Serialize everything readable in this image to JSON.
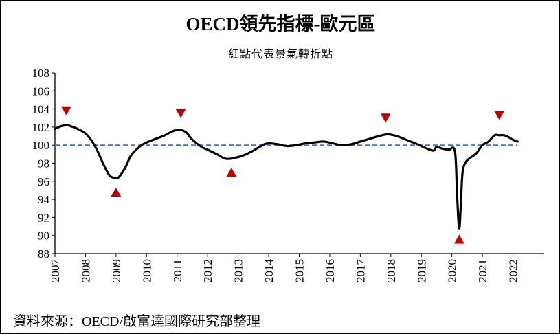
{
  "chart_data": {
    "type": "line",
    "title": "OECD領先指標-歐元區",
    "subtitle": "紅點代表景氣轉折點",
    "source": "資料來源：OECD/啟富達國際研究部整理",
    "xlabel": "",
    "ylabel": "",
    "xlim": [
      2007.0,
      2023.0
    ],
    "ylim": [
      88,
      108
    ],
    "y_ticks": [
      88,
      90,
      92,
      94,
      96,
      98,
      100,
      102,
      104,
      106,
      108
    ],
    "x_ticks": [
      "2007",
      "2008",
      "2009",
      "2010",
      "2011",
      "2012",
      "2013",
      "2014",
      "2015",
      "2016",
      "2017",
      "2018",
      "2019",
      "2020",
      "2021",
      "2022"
    ],
    "x_tick_values": [
      2007,
      2008,
      2009,
      2010,
      2011,
      2012,
      2013,
      2014,
      2015,
      2016,
      2017,
      2018,
      2019,
      2020,
      2021,
      2022
    ],
    "grid": false,
    "reference_line": {
      "y": 100,
      "style": "dashed",
      "color": "#4472C4"
    },
    "series": [
      {
        "color": "#000000",
        "x": [
          2007.0,
          2007.2,
          2007.4,
          2007.6,
          2007.8,
          2008.0,
          2008.2,
          2008.4,
          2008.6,
          2008.8,
          2009.0,
          2009.1,
          2009.3,
          2009.5,
          2009.8,
          2010.0,
          2010.3,
          2010.6,
          2010.9,
          2011.1,
          2011.3,
          2011.5,
          2011.8,
          2012.0,
          2012.3,
          2012.6,
          2012.9,
          2013.2,
          2013.5,
          2013.8,
          2014.0,
          2014.3,
          2014.6,
          2014.9,
          2015.2,
          2015.5,
          2015.8,
          2016.1,
          2016.4,
          2016.7,
          2017.0,
          2017.3,
          2017.6,
          2017.9,
          2018.2,
          2018.5,
          2018.8,
          2019.0,
          2019.2,
          2019.4,
          2019.5,
          2019.7,
          2019.9,
          2020.1,
          2020.17,
          2020.24,
          2020.3,
          2020.35,
          2020.45,
          2020.6,
          2020.8,
          2021.0,
          2021.2,
          2021.4,
          2021.55,
          2021.7,
          2021.85,
          2022.0,
          2022.15
        ],
        "y": [
          101.8,
          102.1,
          102.2,
          102.0,
          101.7,
          101.3,
          100.5,
          99.3,
          97.8,
          96.6,
          96.4,
          96.5,
          97.5,
          98.9,
          99.9,
          100.3,
          100.7,
          101.1,
          101.6,
          101.7,
          101.4,
          100.6,
          99.8,
          99.5,
          99.0,
          98.5,
          98.6,
          98.9,
          99.4,
          100.0,
          100.2,
          100.1,
          99.9,
          100.0,
          100.2,
          100.3,
          100.4,
          100.2,
          100.0,
          100.1,
          100.4,
          100.7,
          101.0,
          101.2,
          101.0,
          100.6,
          100.2,
          99.9,
          99.6,
          99.4,
          99.8,
          99.6,
          99.5,
          99.3,
          94.5,
          90.8,
          94.0,
          97.0,
          98.1,
          98.6,
          99.1,
          100.0,
          100.4,
          101.1,
          101.1,
          101.1,
          100.9,
          100.6,
          100.4
        ]
      }
    ],
    "annotations": [
      {
        "type": "turning-point-peak",
        "marker": "triangle-down",
        "x": 2007.37,
        "y": 103.8,
        "color": "#C00000"
      },
      {
        "type": "turning-point-trough",
        "marker": "triangle-up",
        "x": 2009.0,
        "y": 94.8,
        "color": "#C00000"
      },
      {
        "type": "turning-point-peak",
        "marker": "triangle-down",
        "x": 2011.12,
        "y": 103.5,
        "color": "#C00000"
      },
      {
        "type": "turning-point-trough",
        "marker": "triangle-up",
        "x": 2012.78,
        "y": 97.0,
        "color": "#C00000"
      },
      {
        "type": "turning-point-peak",
        "marker": "triangle-down",
        "x": 2017.83,
        "y": 103.0,
        "color": "#C00000"
      },
      {
        "type": "turning-point-trough",
        "marker": "triangle-up",
        "x": 2020.24,
        "y": 89.6,
        "color": "#C00000"
      },
      {
        "type": "turning-point-peak",
        "marker": "triangle-down",
        "x": 2021.55,
        "y": 103.3,
        "color": "#C00000"
      }
    ]
  }
}
